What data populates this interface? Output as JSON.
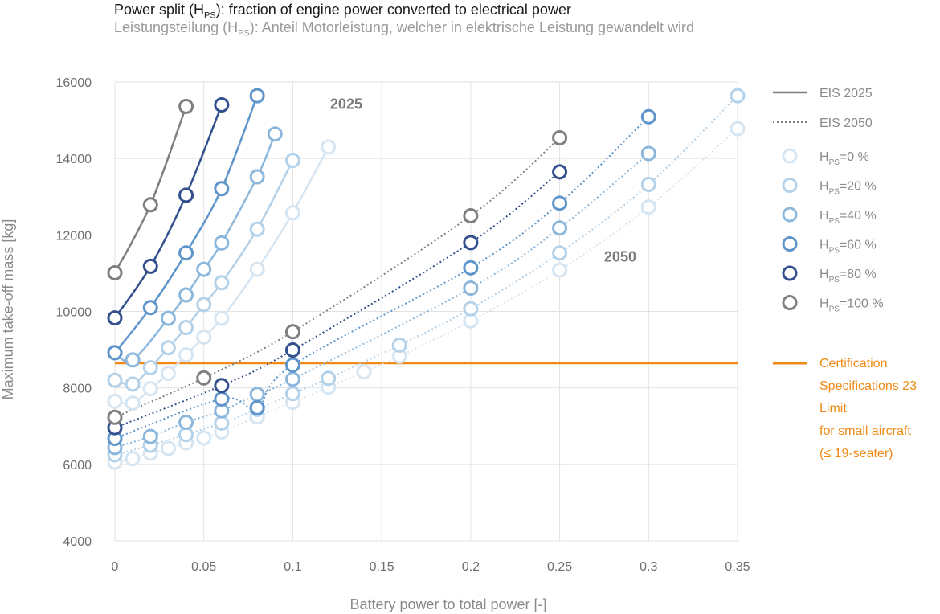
{
  "title": {
    "prefix": "Power split (H",
    "sub": "PS",
    "suffix": "): fraction of engine power converted to electrical power"
  },
  "subtitle": {
    "prefix": "Leistungsteilung (H",
    "sub": "PS",
    "suffix": "): Anteil Motorleistung, welcher in elektrische Leistung gewandelt wird"
  },
  "colors": {
    "hps0": "#d6e5f2",
    "hps20": "#b3d1e8",
    "hps40": "#8bb7dc",
    "hps60": "#5f95cb",
    "hps80": "#33508e",
    "hps100": "#7f7f81",
    "certification": "#ef8a17",
    "grid": "#e2e2e2"
  },
  "chart_data": {
    "type": "line",
    "xlabel": "Battery power to total power [-]",
    "ylabel": "Maximum take-off mass [kg]",
    "xlim": [
      0,
      0.35
    ],
    "ylim": [
      4000,
      16000
    ],
    "xticks": [
      0,
      0.05,
      0.1,
      0.15,
      0.2,
      0.25,
      0.3,
      0.35
    ],
    "xtick_labels": [
      "0",
      "0.05",
      "0.1",
      "0.15",
      "0.2",
      "0.25",
      "0.3",
      "0.35"
    ],
    "yticks": [
      4000,
      6000,
      8000,
      10000,
      12000,
      14000,
      16000
    ],
    "ytick_labels": [
      "4000",
      "6000",
      "8000",
      "10000",
      "12000",
      "14000",
      "16000"
    ],
    "grid": "vertical and horizontal",
    "legend_position": "right",
    "annotations": [
      {
        "text": "2025",
        "x": 0.121,
        "y": 15300
      },
      {
        "text": "2050",
        "x": 0.275,
        "y": 11300
      }
    ],
    "series": [
      {
        "group": "EIS 2025",
        "hps": "0 %",
        "color_key": "hps0",
        "x": [
          0,
          0.01,
          0.02,
          0.03,
          0.04,
          0.05,
          0.06,
          0.08,
          0.1,
          0.12
        ],
        "y": [
          7650,
          7600,
          7980,
          8380,
          8860,
          9330,
          9820,
          11100,
          12580,
          14300
        ]
      },
      {
        "group": "EIS 2025",
        "hps": "20 %",
        "color_key": "hps20",
        "x": [
          0,
          0.01,
          0.02,
          0.03,
          0.04,
          0.05,
          0.06,
          0.08,
          0.1
        ],
        "y": [
          8200,
          8100,
          8530,
          9050,
          9580,
          10180,
          10750,
          12150,
          13950
        ]
      },
      {
        "group": "EIS 2025",
        "hps": "40 %",
        "color_key": "hps40",
        "x": [
          0,
          0.01,
          0.03,
          0.04,
          0.05,
          0.06,
          0.08,
          0.09
        ],
        "y": [
          8920,
          8730,
          9820,
          10430,
          11100,
          11790,
          13520,
          14640
        ]
      },
      {
        "group": "EIS 2025",
        "hps": "60 %",
        "color_key": "hps60",
        "x": [
          0,
          0.02,
          0.04,
          0.06,
          0.08
        ],
        "y": [
          8920,
          10100,
          11530,
          13210,
          15640
        ]
      },
      {
        "group": "EIS 2025",
        "hps": "80 %",
        "color_key": "hps80",
        "x": [
          0,
          0.02,
          0.04,
          0.06
        ],
        "y": [
          9830,
          11180,
          13040,
          15400
        ]
      },
      {
        "group": "EIS 2025",
        "hps": "100 %",
        "color_key": "hps100",
        "x": [
          0,
          0.02,
          0.04
        ],
        "y": [
          11010,
          12790,
          15360
        ]
      },
      {
        "group": "EIS 2050",
        "hps": "0 %",
        "color_key": "hps0",
        "x": [
          0,
          0.01,
          0.02,
          0.03,
          0.04,
          0.05,
          0.06,
          0.08,
          0.1,
          0.12,
          0.14,
          0.16,
          0.2,
          0.25,
          0.3,
          0.35
        ],
        "y": [
          6060,
          6150,
          6290,
          6420,
          6560,
          6690,
          6850,
          7240,
          7620,
          8020,
          8420,
          8830,
          9750,
          11080,
          12730,
          14780
        ]
      },
      {
        "group": "EIS 2050",
        "hps": "20 %",
        "color_key": "hps20",
        "x": [
          0,
          0.02,
          0.04,
          0.06,
          0.08,
          0.1,
          0.12,
          0.16,
          0.2,
          0.25,
          0.3,
          0.35
        ],
        "y": [
          6250,
          6500,
          6780,
          7080,
          7440,
          7850,
          8250,
          9120,
          10070,
          11530,
          13320,
          15640
        ]
      },
      {
        "group": "EIS 2050",
        "hps": "40 %",
        "color_key": "hps40",
        "x": [
          0,
          0.02,
          0.04,
          0.06,
          0.08,
          0.1,
          0.2,
          0.25,
          0.3
        ],
        "y": [
          6440,
          6730,
          7100,
          7400,
          7830,
          8230,
          10610,
          12180,
          14130
        ]
      },
      {
        "group": "EIS 2050",
        "hps": "60 %",
        "color_key": "hps60",
        "x": [
          0,
          0.06,
          0.08,
          0.1,
          0.2,
          0.25,
          0.3
        ],
        "y": [
          6680,
          7710,
          7480,
          8600,
          11140,
          12830,
          15090
        ]
      },
      {
        "group": "EIS 2050",
        "hps": "80 %",
        "color_key": "hps80",
        "x": [
          0,
          0.06,
          0.1,
          0.2,
          0.25
        ],
        "y": [
          6960,
          8060,
          8990,
          11800,
          13650
        ]
      },
      {
        "group": "EIS 2050",
        "hps": "100 %",
        "color_key": "hps100",
        "x": [
          0,
          0.05,
          0.1,
          0.2,
          0.25
        ],
        "y": [
          7230,
          8260,
          9470,
          12500,
          14540
        ]
      }
    ],
    "reference_line": {
      "y": 8650,
      "label": "Certification Specifications 23 Limit for small aircraft (≤ 19-seater)"
    }
  },
  "legend": {
    "eis2025": "EIS 2025",
    "eis2050": "EIS 2050",
    "hps_prefix": "H",
    "hps_sub": "PS",
    "items": [
      {
        "value": "=0 %",
        "color_key": "hps0"
      },
      {
        "value": "=20 %",
        "color_key": "hps20"
      },
      {
        "value": "=40 %",
        "color_key": "hps40"
      },
      {
        "value": "=60 %",
        "color_key": "hps60"
      },
      {
        "value": "=80 %",
        "color_key": "hps80"
      },
      {
        "value": "=100 %",
        "color_key": "hps100"
      }
    ],
    "certification_lines": [
      "Certification",
      "Specifications 23",
      "Limit",
      "for small aircraft",
      "(≤ 19-seater)"
    ]
  }
}
